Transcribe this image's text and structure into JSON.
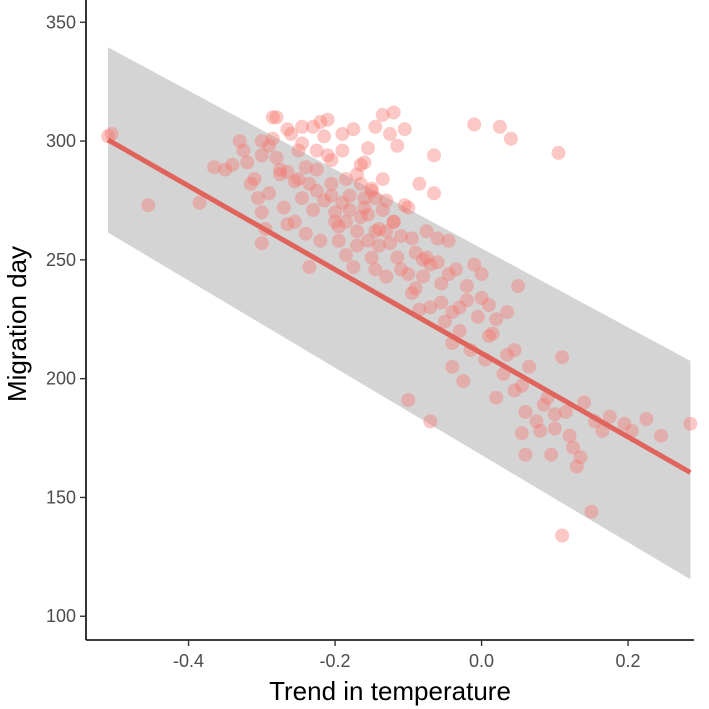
{
  "chart_data": {
    "type": "scatter",
    "title": "",
    "xlabel": "Trend in temperature",
    "ylabel": "Migration day",
    "xlim": [
      -0.54,
      0.29
    ],
    "ylim": [
      90,
      356
    ],
    "x_ticks": [
      -0.4,
      -0.2,
      0.0,
      0.2
    ],
    "x_tick_labels": [
      "-0.4",
      "-0.2",
      "0.0",
      "0.2"
    ],
    "y_ticks": [
      100,
      150,
      200,
      250,
      300,
      350
    ],
    "y_tick_labels": [
      "100",
      "150",
      "200",
      "250",
      "300",
      "350"
    ],
    "grid": false,
    "legend": "none",
    "colors": {
      "points": "#F8766D",
      "fit_line": "#E0645C",
      "ribbon": "#d4d4d4",
      "axis": "#000000",
      "tick_text": "#4d4d4d"
    },
    "fit": {
      "x": [
        -0.51,
        0.285
      ],
      "y": [
        300.5,
        160.5
      ],
      "lower": [
        261.5,
        115.5
      ],
      "upper": [
        339.5,
        207.5
      ]
    },
    "points": [
      [
        -0.51,
        302
      ],
      [
        -0.505,
        303
      ],
      [
        -0.455,
        273
      ],
      [
        -0.385,
        274
      ],
      [
        -0.365,
        289
      ],
      [
        -0.35,
        288
      ],
      [
        -0.34,
        290
      ],
      [
        -0.33,
        300
      ],
      [
        -0.325,
        296
      ],
      [
        -0.32,
        291
      ],
      [
        -0.315,
        282
      ],
      [
        -0.31,
        284
      ],
      [
        -0.305,
        276
      ],
      [
        -0.3,
        270
      ],
      [
        -0.3,
        257
      ],
      [
        -0.295,
        263
      ],
      [
        -0.29,
        298
      ],
      [
        -0.29,
        278
      ],
      [
        -0.285,
        310
      ],
      [
        -0.28,
        293
      ],
      [
        -0.275,
        286
      ],
      [
        -0.27,
        272
      ],
      [
        -0.265,
        265
      ],
      [
        -0.26,
        303
      ],
      [
        -0.255,
        283
      ],
      [
        -0.25,
        296
      ],
      [
        -0.245,
        276
      ],
      [
        -0.24,
        261
      ],
      [
        -0.235,
        247
      ],
      [
        -0.23,
        271
      ],
      [
        -0.225,
        288
      ],
      [
        -0.22,
        308
      ],
      [
        -0.215,
        302
      ],
      [
        -0.21,
        294
      ],
      [
        -0.205,
        282
      ],
      [
        -0.2,
        270
      ],
      [
        -0.195,
        258
      ],
      [
        -0.19,
        296
      ],
      [
        -0.185,
        266
      ],
      [
        -0.18,
        277
      ],
      [
        -0.175,
        305
      ],
      [
        -0.17,
        286
      ],
      [
        -0.165,
        290
      ],
      [
        -0.16,
        272
      ],
      [
        -0.155,
        297
      ],
      [
        -0.15,
        280
      ],
      [
        -0.145,
        262
      ],
      [
        -0.14,
        256
      ],
      [
        -0.135,
        311
      ],
      [
        -0.13,
        275
      ],
      [
        -0.125,
        303
      ],
      [
        -0.12,
        266
      ],
      [
        -0.115,
        298
      ],
      [
        -0.11,
        260
      ],
      [
        -0.105,
        273
      ],
      [
        -0.1,
        244
      ],
      [
        -0.095,
        236
      ],
      [
        -0.09,
        238
      ],
      [
        -0.085,
        229
      ],
      [
        -0.08,
        250
      ],
      [
        -0.075,
        262
      ],
      [
        -0.07,
        248
      ],
      [
        -0.065,
        278
      ],
      [
        -0.06,
        259
      ],
      [
        -0.055,
        232
      ],
      [
        -0.05,
        224
      ],
      [
        -0.045,
        258
      ],
      [
        -0.04,
        215
      ],
      [
        -0.035,
        246
      ],
      [
        -0.03,
        220
      ],
      [
        -0.025,
        199
      ],
      [
        -0.02,
        233
      ],
      [
        -0.015,
        212
      ],
      [
        -0.01,
        307
      ],
      [
        -0.005,
        226
      ],
      [
        0.0,
        244
      ],
      [
        0.005,
        208
      ],
      [
        0.01,
        231
      ],
      [
        0.015,
        219
      ],
      [
        0.02,
        192
      ],
      [
        0.025,
        306
      ],
      [
        0.03,
        202
      ],
      [
        0.035,
        210
      ],
      [
        0.04,
        301
      ],
      [
        0.045,
        195
      ],
      [
        0.05,
        239
      ],
      [
        0.055,
        177
      ],
      [
        0.06,
        168
      ],
      [
        0.065,
        205
      ],
      [
        0.075,
        182
      ],
      [
        0.085,
        189
      ],
      [
        0.095,
        168
      ],
      [
        0.1,
        179
      ],
      [
        0.105,
        295
      ],
      [
        0.11,
        209
      ],
      [
        0.115,
        186
      ],
      [
        0.12,
        176
      ],
      [
        0.125,
        171
      ],
      [
        0.135,
        167
      ],
      [
        0.14,
        190
      ],
      [
        0.15,
        144
      ],
      [
        0.155,
        182
      ],
      [
        0.165,
        178
      ],
      [
        0.175,
        184
      ],
      [
        0.195,
        181
      ],
      [
        0.205,
        178
      ],
      [
        0.225,
        183
      ],
      [
        0.245,
        176
      ],
      [
        0.285,
        181
      ],
      [
        0.11,
        134
      ],
      [
        0.13,
        163
      ],
      [
        -0.07,
        182
      ],
      [
        -0.1,
        191
      ],
      [
        -0.04,
        205
      ],
      [
        -0.23,
        306
      ],
      [
        -0.19,
        303
      ],
      [
        -0.16,
        291
      ],
      [
        -0.145,
        306
      ],
      [
        -0.21,
        309
      ],
      [
        -0.245,
        306
      ],
      [
        -0.28,
        310
      ],
      [
        -0.3,
        294
      ],
      [
        -0.12,
        312
      ],
      [
        -0.105,
        305
      ],
      [
        -0.085,
        282
      ],
      [
        -0.065,
        294
      ],
      [
        -0.24,
        289
      ],
      [
        -0.255,
        266
      ],
      [
        -0.22,
        258
      ],
      [
        -0.2,
        266
      ],
      [
        -0.175,
        247
      ],
      [
        -0.15,
        251
      ],
      [
        -0.13,
        243
      ],
      [
        -0.11,
        246
      ],
      [
        -0.09,
        253
      ],
      [
        -0.075,
        251
      ],
      [
        -0.06,
        249
      ],
      [
        -0.045,
        244
      ],
      [
        -0.17,
        262
      ],
      [
        -0.165,
        268
      ],
      [
        -0.155,
        269
      ],
      [
        -0.14,
        263
      ],
      [
        -0.125,
        257
      ],
      [
        -0.115,
        251
      ],
      [
        -0.135,
        284
      ],
      [
        -0.15,
        279
      ],
      [
        -0.16,
        276
      ],
      [
        -0.18,
        271
      ],
      [
        -0.19,
        274
      ],
      [
        -0.205,
        277
      ],
      [
        -0.215,
        275
      ],
      [
        -0.225,
        279
      ],
      [
        -0.235,
        282
      ],
      [
        -0.25,
        284
      ],
      [
        -0.265,
        287
      ],
      [
        -0.275,
        288
      ],
      [
        -0.195,
        264
      ],
      [
        -0.185,
        252
      ],
      [
        -0.17,
        256
      ],
      [
        -0.155,
        258
      ],
      [
        -0.145,
        246
      ],
      [
        -0.13,
        262
      ],
      [
        -0.12,
        266
      ],
      [
        -0.1,
        272
      ],
      [
        -0.095,
        259
      ],
      [
        -0.08,
        243
      ],
      [
        -0.07,
        230
      ],
      [
        -0.055,
        240
      ],
      [
        -0.04,
        228
      ],
      [
        -0.03,
        230
      ],
      [
        -0.02,
        239
      ],
      [
        -0.01,
        248
      ],
      [
        0.0,
        234
      ],
      [
        0.01,
        218
      ],
      [
        0.02,
        225
      ],
      [
        0.035,
        228
      ],
      [
        0.045,
        212
      ],
      [
        0.055,
        197
      ],
      [
        0.06,
        186
      ],
      [
        0.08,
        178
      ],
      [
        0.09,
        192
      ],
      [
        0.1,
        185
      ],
      [
        -0.285,
        301
      ],
      [
        -0.3,
        300
      ],
      [
        -0.265,
        305
      ],
      [
        -0.245,
        299
      ],
      [
        -0.225,
        296
      ],
      [
        -0.205,
        292
      ],
      [
        -0.185,
        284
      ],
      [
        -0.165,
        282
      ],
      [
        -0.145,
        276
      ],
      [
        -0.135,
        271
      ]
    ]
  }
}
